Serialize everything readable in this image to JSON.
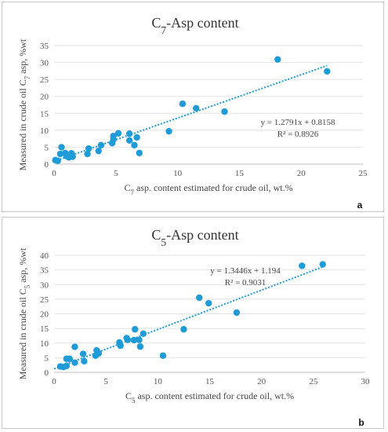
{
  "chart_data": [
    {
      "type": "scatter",
      "panel_label": "a",
      "title_main": "C",
      "title_sub": "7",
      "title_rest": "-Asp content",
      "xlabel_main": "C",
      "xlabel_sub": "7",
      "xlabel_rest": " asp. content estimated for crude oil, wt.%",
      "ylabel_main": "Measured in crude oil C",
      "ylabel_sub": "7",
      "ylabel_rest": " asp, %wt",
      "xlim": [
        0,
        25
      ],
      "ylim": [
        0,
        35
      ],
      "xticks": [
        "0",
        "5",
        "10",
        "15",
        "20",
        "25"
      ],
      "yticks": [
        "0",
        "5",
        "10",
        "15",
        "20",
        "25",
        "30",
        "35"
      ],
      "grid": true,
      "equation": "y = 1.2791x + 0.8158",
      "r2": "R² = 0.8926",
      "trendline": {
        "slope": 1.2791,
        "intercept": 0.8158,
        "x_range": [
          0,
          22.1
        ]
      },
      "marker_color": "#1f9bd7",
      "points": [
        [
          0.1,
          1.2
        ],
        [
          0.3,
          1.0
        ],
        [
          0.5,
          3.0
        ],
        [
          0.6,
          5.0
        ],
        [
          0.9,
          3.3
        ],
        [
          1.0,
          2.4
        ],
        [
          1.2,
          2.0
        ],
        [
          1.4,
          3.2
        ],
        [
          1.5,
          2.2
        ],
        [
          2.7,
          3.0
        ],
        [
          2.8,
          4.6
        ],
        [
          3.6,
          3.9
        ],
        [
          3.8,
          5.6
        ],
        [
          4.7,
          6.2
        ],
        [
          4.8,
          7.3
        ],
        [
          4.8,
          8.3
        ],
        [
          5.2,
          9.1
        ],
        [
          6.1,
          7.0
        ],
        [
          6.1,
          9.0
        ],
        [
          6.5,
          5.6
        ],
        [
          6.7,
          7.9
        ],
        [
          6.9,
          3.3
        ],
        [
          9.3,
          9.7
        ],
        [
          10.4,
          17.8
        ],
        [
          11.5,
          16.5
        ],
        [
          13.8,
          15.5
        ],
        [
          18.1,
          30.9
        ],
        [
          22.1,
          27.4
        ]
      ]
    },
    {
      "type": "scatter",
      "panel_label": "b",
      "title_main": "C",
      "title_sub": "5",
      "title_rest": "-Asp content",
      "xlabel_main": "C",
      "xlabel_sub": "5",
      "xlabel_rest": " asp. content estimated for crude oil, wt.%",
      "ylabel_main": "Measured in crude oil C",
      "ylabel_sub": "5",
      "ylabel_rest": " asp, %wt",
      "xlim": [
        0,
        30
      ],
      "ylim": [
        0,
        40
      ],
      "xticks": [
        "0",
        "5",
        "10",
        "15",
        "20",
        "25",
        "30"
      ],
      "yticks": [
        "0",
        "5",
        "10",
        "15",
        "20",
        "25",
        "30",
        "35",
        "40"
      ],
      "grid": true,
      "equation": "y = 1.3446x + 1.194",
      "r2": "R² = 0.9031",
      "trendline": {
        "slope": 1.3446,
        "intercept": 1.194,
        "x_range": [
          0,
          25.9
        ]
      },
      "marker_color": "#1f9bd7",
      "points": [
        [
          0.6,
          2.0
        ],
        [
          0.9,
          1.8
        ],
        [
          1.2,
          2.2
        ],
        [
          1.2,
          4.6
        ],
        [
          1.5,
          4.6
        ],
        [
          2.0,
          3.3
        ],
        [
          2.0,
          8.7
        ],
        [
          2.8,
          6.3
        ],
        [
          2.9,
          3.8
        ],
        [
          4.0,
          5.7
        ],
        [
          4.1,
          7.5
        ],
        [
          4.3,
          6.5
        ],
        [
          6.3,
          10.2
        ],
        [
          6.4,
          9.1
        ],
        [
          7.0,
          11.7
        ],
        [
          7.1,
          11.1
        ],
        [
          7.7,
          11.0
        ],
        [
          7.8,
          14.7
        ],
        [
          8.2,
          11.1
        ],
        [
          8.3,
          8.8
        ],
        [
          8.6,
          13.2
        ],
        [
          10.5,
          5.7
        ],
        [
          12.5,
          14.7
        ],
        [
          14.0,
          25.5
        ],
        [
          14.9,
          23.6
        ],
        [
          17.6,
          20.4
        ],
        [
          23.9,
          36.4
        ],
        [
          25.9,
          36.9
        ]
      ]
    }
  ]
}
